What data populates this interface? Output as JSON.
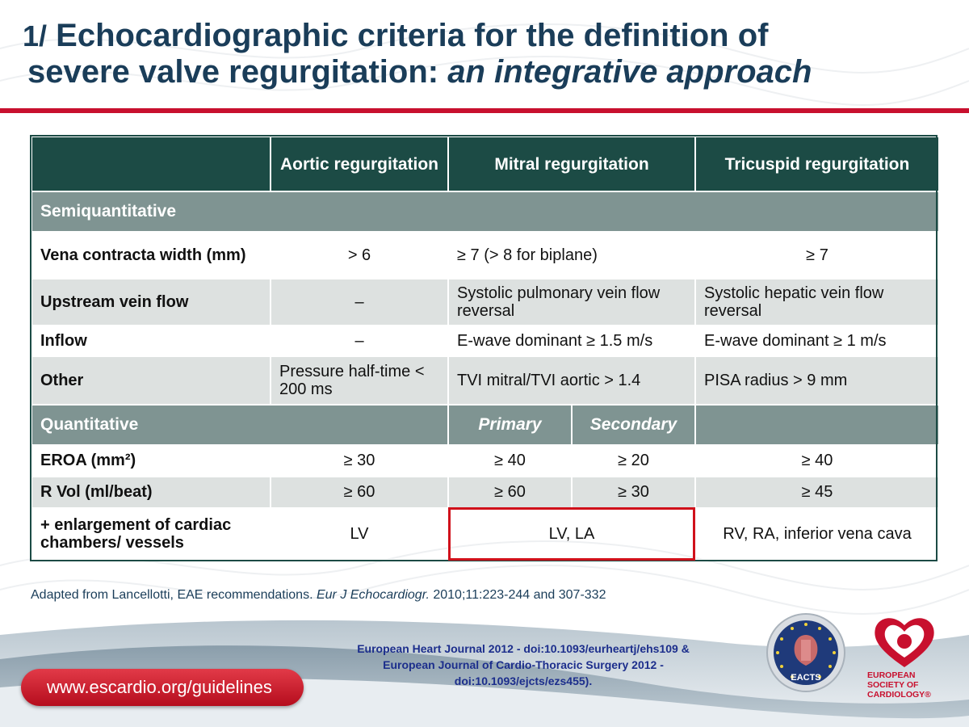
{
  "title": {
    "number": "1/",
    "line1": "Echocardiographic criteria for the definition of",
    "line2_plain": "severe valve regurgitation:",
    "line2_italic": "an integrative approach"
  },
  "table": {
    "headers": {
      "col0": "",
      "aortic": "Aortic regurgitation",
      "mitral": "Mitral regurgitation",
      "tricuspid": "Tricuspid regurgitation"
    },
    "semiquantitative_label": "Semiquantitative",
    "vena_contracta": {
      "label": "Vena contracta width (mm)",
      "aortic": "> 6",
      "mitral": "≥ 7 (> 8 for biplane)",
      "tricuspid": "≥ 7"
    },
    "upstream_vein_flow": {
      "label": "Upstream vein flow",
      "aortic": "–",
      "mitral": "Systolic pulmonary vein flow reversal",
      "tricuspid": "Systolic hepatic vein flow reversal"
    },
    "inflow": {
      "label": "Inflow",
      "aortic": "–",
      "mitral": "E-wave dominant ≥ 1.5 m/s",
      "tricuspid": "E-wave dominant ≥ 1 m/s"
    },
    "other": {
      "label": "Other",
      "aortic": "Pressure half-time < 200 ms",
      "mitral": "TVI mitral/TVI aortic > 1.4",
      "tricuspid": "PISA radius > 9 mm"
    },
    "quantitative_label": "Quantitative",
    "primary_label": "Primary",
    "secondary_label": "Secondary",
    "eroa": {
      "label": "EROA (mm²)",
      "aortic": "≥ 30",
      "mitral_primary": "≥ 40",
      "mitral_secondary": "≥ 20",
      "tricuspid": "≥ 40"
    },
    "rvol": {
      "label": "R Vol (ml/beat)",
      "aortic": "≥ 60",
      "mitral_primary": "≥ 60",
      "mitral_secondary": "≥ 30",
      "tricuspid": "≥ 45"
    },
    "enlargement": {
      "label": "+ enlargement of cardiac chambers/ vessels",
      "aortic": "LV",
      "mitral": "LV, LA",
      "tricuspid": "RV, RA, inferior vena cava"
    }
  },
  "footnote": {
    "prefix": "Adapted from Lancellotti, EAE recommendations.",
    "journal": "Eur J Echocardiogr.",
    "suffix": "2010;11:223-244 and 307-332"
  },
  "references": {
    "line1": "European Heart Journal 2012 - doi:10.1093/eurheartj/ehs109 &",
    "line2": "European Journal of Cardio-Thoracic Surgery 2012 -",
    "line3": "doi:10.1093/ejcts/ezs455)."
  },
  "url_button": "www.escardio.org/guidelines",
  "logos": {
    "eacts_text": "EACTS",
    "esc_line1": "EUROPEAN",
    "esc_line2": "SOCIETY OF",
    "esc_line3": "CARDIOLOGY®"
  },
  "colors": {
    "header_green": "#1c4b45",
    "section_gray": "#7f9492",
    "accent_red": "#c8102e",
    "title_blue": "#1a3d59"
  }
}
